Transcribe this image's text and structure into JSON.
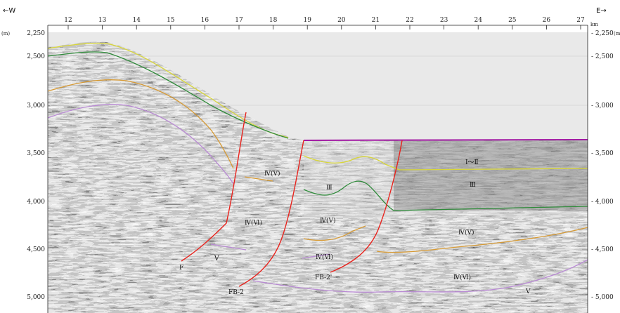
{
  "header": {
    "west_label": "←W",
    "east_label": "E→",
    "km_unit": "km",
    "depth_unit": "(m)"
  },
  "x_axis": {
    "ticks": [
      "12",
      "13",
      "14",
      "15",
      "16",
      "17",
      "18",
      "19",
      "20",
      "21",
      "22",
      "23",
      "24",
      "25",
      "26",
      "27"
    ],
    "unit": "km"
  },
  "y_axis": {
    "left_ticks": [
      "2,250",
      "2,500",
      "3,000",
      "3,500",
      "4,000",
      "4,500",
      "5,000"
    ],
    "right_ticks": [
      "2,250",
      "2,500",
      "3,000",
      "3,500",
      "4,000",
      "4,500",
      "5,000"
    ],
    "unit": "(m)"
  },
  "units": [
    {
      "id": "u-iv-v-a",
      "label": "Ⅳ(Ⅴ)"
    },
    {
      "id": "u-iii-a",
      "label": "Ⅲ"
    },
    {
      "id": "u-i-ii",
      "label": "Ⅰ～Ⅱ"
    },
    {
      "id": "u-iii-b",
      "label": "Ⅲ"
    },
    {
      "id": "u-iv-vi-a",
      "label": "Ⅳ(Ⅵ)"
    },
    {
      "id": "u-iv-v-b",
      "label": "Ⅳ(Ⅴ)"
    },
    {
      "id": "u-iv-v-c",
      "label": "Ⅳ(Ⅴ)"
    },
    {
      "id": "u-iv-vi-b",
      "label": "Ⅳ(Ⅵ)"
    },
    {
      "id": "u-v-a",
      "label": "Ⅴ"
    },
    {
      "id": "u-iv-vi-c",
      "label": "Ⅳ(Ⅵ)"
    },
    {
      "id": "u-v-b",
      "label": "Ⅴ"
    }
  ],
  "faults": [
    {
      "id": "f",
      "label": "F"
    },
    {
      "id": "fb2",
      "label": "FB-2"
    },
    {
      "id": "fb2p",
      "label": "FB-2'"
    }
  ],
  "colors": {
    "fault": "#e8231d",
    "seafloor": "#a21aa3",
    "horizon_yellow": "#d8d63a",
    "horizon_green": "#2f8a3a",
    "horizon_orange": "#d69a35",
    "horizon_violet": "#b98ad4"
  }
}
